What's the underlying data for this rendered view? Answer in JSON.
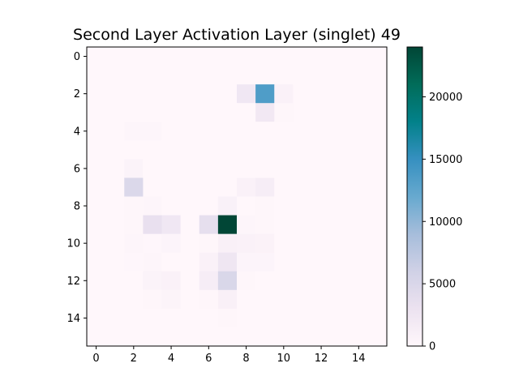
{
  "chart_data": {
    "type": "heatmap",
    "title": "Second Layer Activation Layer (singlet) 49",
    "xlabel": "",
    "ylabel": "",
    "x_ticks": [
      "0",
      "2",
      "4",
      "6",
      "8",
      "10",
      "12",
      "14"
    ],
    "y_ticks": [
      "0",
      "2",
      "4",
      "6",
      "8",
      "10",
      "12",
      "14"
    ],
    "colorbar": {
      "ticks": [
        "0",
        "5000",
        "10000",
        "15000",
        "20000"
      ],
      "range": [
        0,
        24000
      ],
      "colormap": "PuBuGn"
    },
    "colormap_colors": [
      "#fff7fb",
      "#ece2f0",
      "#d0d1e6",
      "#a6bddb",
      "#67a9cf",
      "#3690c0",
      "#02818a",
      "#016c59",
      "#014636"
    ],
    "grid_size": [
      16,
      16
    ],
    "values": [
      [
        0,
        0,
        0,
        0,
        0,
        0,
        0,
        0,
        0,
        0,
        0,
        0,
        0,
        0,
        0,
        0
      ],
      [
        0,
        0,
        0,
        0,
        0,
        0,
        0,
        0,
        0,
        0,
        0,
        0,
        0,
        0,
        0,
        0
      ],
      [
        0,
        0,
        0,
        0,
        0,
        0,
        0,
        0,
        2300,
        13500,
        800,
        0,
        0,
        0,
        0,
        0
      ],
      [
        0,
        0,
        0,
        0,
        0,
        0,
        0,
        0,
        0,
        2100,
        200,
        0,
        0,
        0,
        0,
        0
      ],
      [
        0,
        0,
        300,
        300,
        0,
        0,
        0,
        0,
        0,
        0,
        0,
        0,
        0,
        0,
        0,
        0
      ],
      [
        0,
        0,
        0,
        0,
        0,
        0,
        0,
        0,
        0,
        0,
        0,
        0,
        0,
        0,
        0,
        0
      ],
      [
        0,
        0,
        600,
        0,
        0,
        0,
        0,
        0,
        0,
        0,
        0,
        0,
        0,
        0,
        0,
        0
      ],
      [
        0,
        0,
        4800,
        0,
        0,
        0,
        0,
        0,
        800,
        1500,
        0,
        0,
        0,
        0,
        0,
        0
      ],
      [
        0,
        0,
        200,
        300,
        0,
        0,
        0,
        900,
        0,
        200,
        0,
        0,
        0,
        0,
        0,
        0
      ],
      [
        0,
        0,
        200,
        3300,
        2300,
        0,
        3600,
        24000,
        300,
        200,
        0,
        0,
        0,
        0,
        0,
        0
      ],
      [
        0,
        0,
        300,
        100,
        400,
        0,
        200,
        1000,
        800,
        700,
        0,
        0,
        0,
        0,
        0,
        0
      ],
      [
        0,
        0,
        100,
        300,
        0,
        0,
        800,
        2500,
        400,
        400,
        0,
        0,
        0,
        0,
        0,
        0
      ],
      [
        0,
        0,
        0,
        600,
        800,
        0,
        1500,
        5000,
        200,
        0,
        0,
        0,
        0,
        0,
        0,
        0
      ],
      [
        0,
        0,
        0,
        200,
        500,
        0,
        200,
        1000,
        0,
        0,
        0,
        0,
        0,
        0,
        0,
        0
      ],
      [
        0,
        0,
        0,
        0,
        0,
        0,
        0,
        200,
        0,
        0,
        0,
        0,
        0,
        0,
        0,
        0
      ],
      [
        0,
        0,
        0,
        0,
        0,
        0,
        0,
        0,
        0,
        0,
        0,
        0,
        0,
        0,
        0,
        0
      ]
    ]
  }
}
